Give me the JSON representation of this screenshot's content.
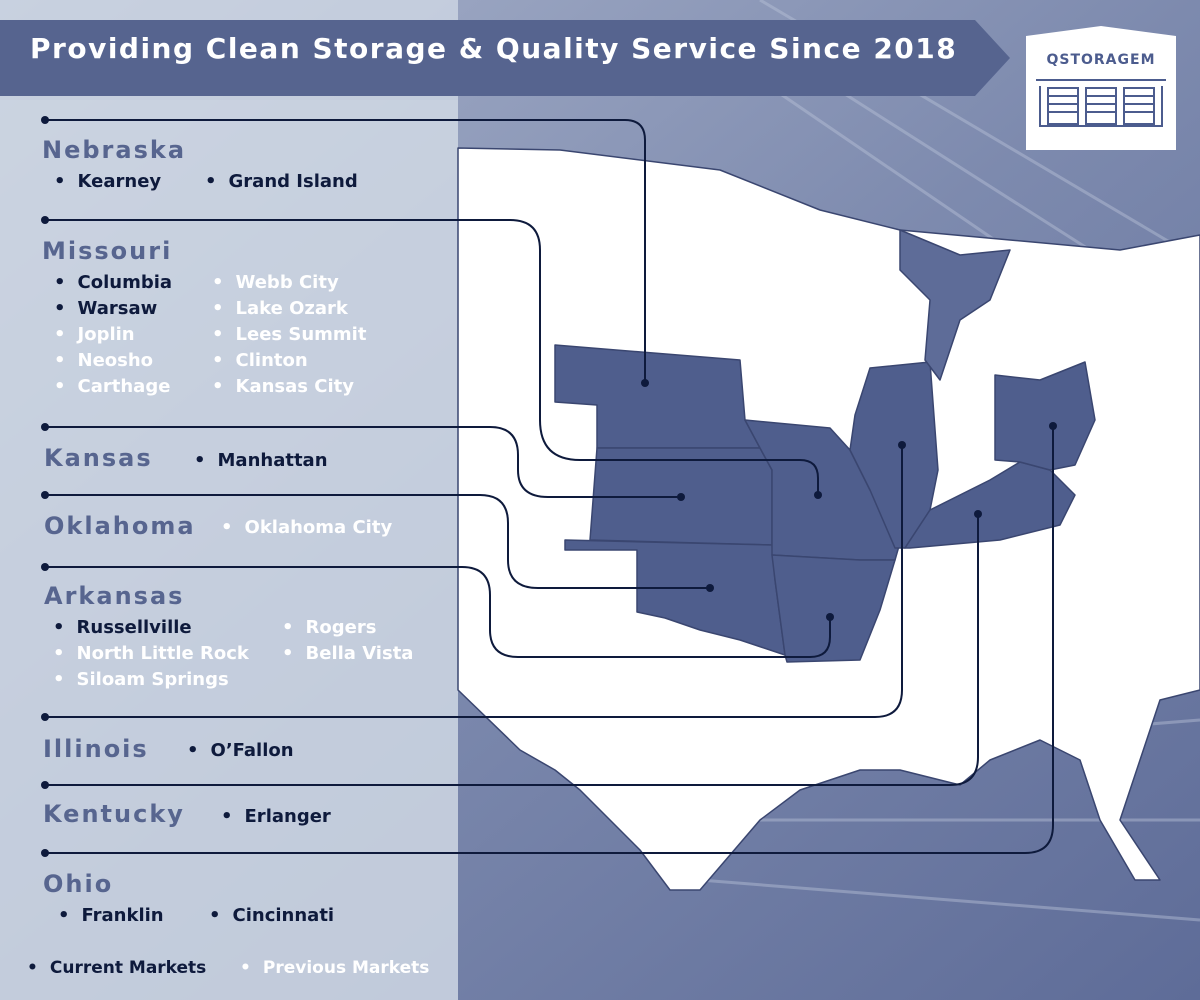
{
  "banner": {
    "title": "Providing Clean Storage & Quality Service Since 2018"
  },
  "logo": {
    "text": "QSTORAGEM",
    "icon": "storage-building-icon"
  },
  "colors": {
    "current": "#0e1a3c",
    "previous": "#ffffff",
    "highlighted_state": "#4f5e8d",
    "banner": "#56648f",
    "state_heading": "#57658f"
  },
  "states": {
    "nebraska": {
      "name": "Nebraska",
      "cities": [
        {
          "name": "Kearney",
          "status": "current"
        },
        {
          "name": "Grand Island",
          "status": "current"
        }
      ]
    },
    "missouri": {
      "name": "Missouri",
      "cities": [
        {
          "name": "Columbia",
          "status": "current"
        },
        {
          "name": "Warsaw",
          "status": "current"
        },
        {
          "name": "Joplin",
          "status": "previous"
        },
        {
          "name": "Neosho",
          "status": "previous"
        },
        {
          "name": "Carthage",
          "status": "previous"
        },
        {
          "name": "Webb City",
          "status": "previous"
        },
        {
          "name": "Lake Ozark",
          "status": "previous"
        },
        {
          "name": "Lees Summit",
          "status": "previous"
        },
        {
          "name": "Clinton",
          "status": "previous"
        },
        {
          "name": "Kansas City",
          "status": "previous"
        }
      ]
    },
    "kansas": {
      "name": "Kansas",
      "cities": [
        {
          "name": "Manhattan",
          "status": "current"
        }
      ]
    },
    "oklahoma": {
      "name": "Oklahoma",
      "cities": [
        {
          "name": "Oklahoma City",
          "status": "previous"
        }
      ]
    },
    "arkansas": {
      "name": "Arkansas",
      "cities": [
        {
          "name": "Russellville",
          "status": "current"
        },
        {
          "name": "North Little Rock",
          "status": "previous"
        },
        {
          "name": "Siloam Springs",
          "status": "previous"
        },
        {
          "name": "Rogers",
          "status": "previous"
        },
        {
          "name": "Bella Vista",
          "status": "previous"
        }
      ]
    },
    "illinois": {
      "name": "Illinois",
      "cities": [
        {
          "name": "O’Fallon",
          "status": "current"
        }
      ]
    },
    "kentucky": {
      "name": "Kentucky",
      "cities": [
        {
          "name": "Erlanger",
          "status": "current"
        }
      ]
    },
    "ohio": {
      "name": "Ohio",
      "cities": [
        {
          "name": "Franklin",
          "status": "current"
        },
        {
          "name": "Cincinnati",
          "status": "current"
        }
      ]
    }
  },
  "legend": {
    "current": "Current Markets",
    "previous": "Previous Markets"
  }
}
